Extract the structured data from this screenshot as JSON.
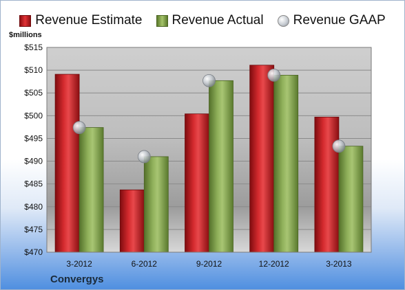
{
  "legend": {
    "estimate": "Revenue Estimate",
    "actual": "Revenue Actual",
    "gaap": "Revenue GAAP"
  },
  "unit_label": "$millions",
  "company": "Convergys",
  "colors": {
    "estimate": "#d42a2e",
    "actual": "#8fb05a",
    "gaap": "#c8cdd3"
  },
  "chart_data": {
    "type": "bar",
    "categories": [
      "3-2012",
      "6-2012",
      "9-2012",
      "12-2012",
      "3-2013"
    ],
    "series": [
      {
        "name": "Revenue Estimate",
        "values": [
          509.1,
          483.7,
          500.4,
          511.1,
          499.7
        ]
      },
      {
        "name": "Revenue Actual",
        "values": [
          497.4,
          491.0,
          507.7,
          508.9,
          493.3
        ]
      },
      {
        "name": "Revenue GAAP",
        "type": "scatter",
        "values": [
          497.4,
          491.0,
          507.7,
          508.9,
          493.3
        ]
      }
    ],
    "ylabel": "$millions",
    "ylim": [
      470,
      515
    ],
    "yticks": [
      "$470",
      "$475",
      "$480",
      "$485",
      "$490",
      "$495",
      "$500",
      "$505",
      "$510",
      "$515"
    ],
    "grid": true,
    "legend_position": "top"
  }
}
